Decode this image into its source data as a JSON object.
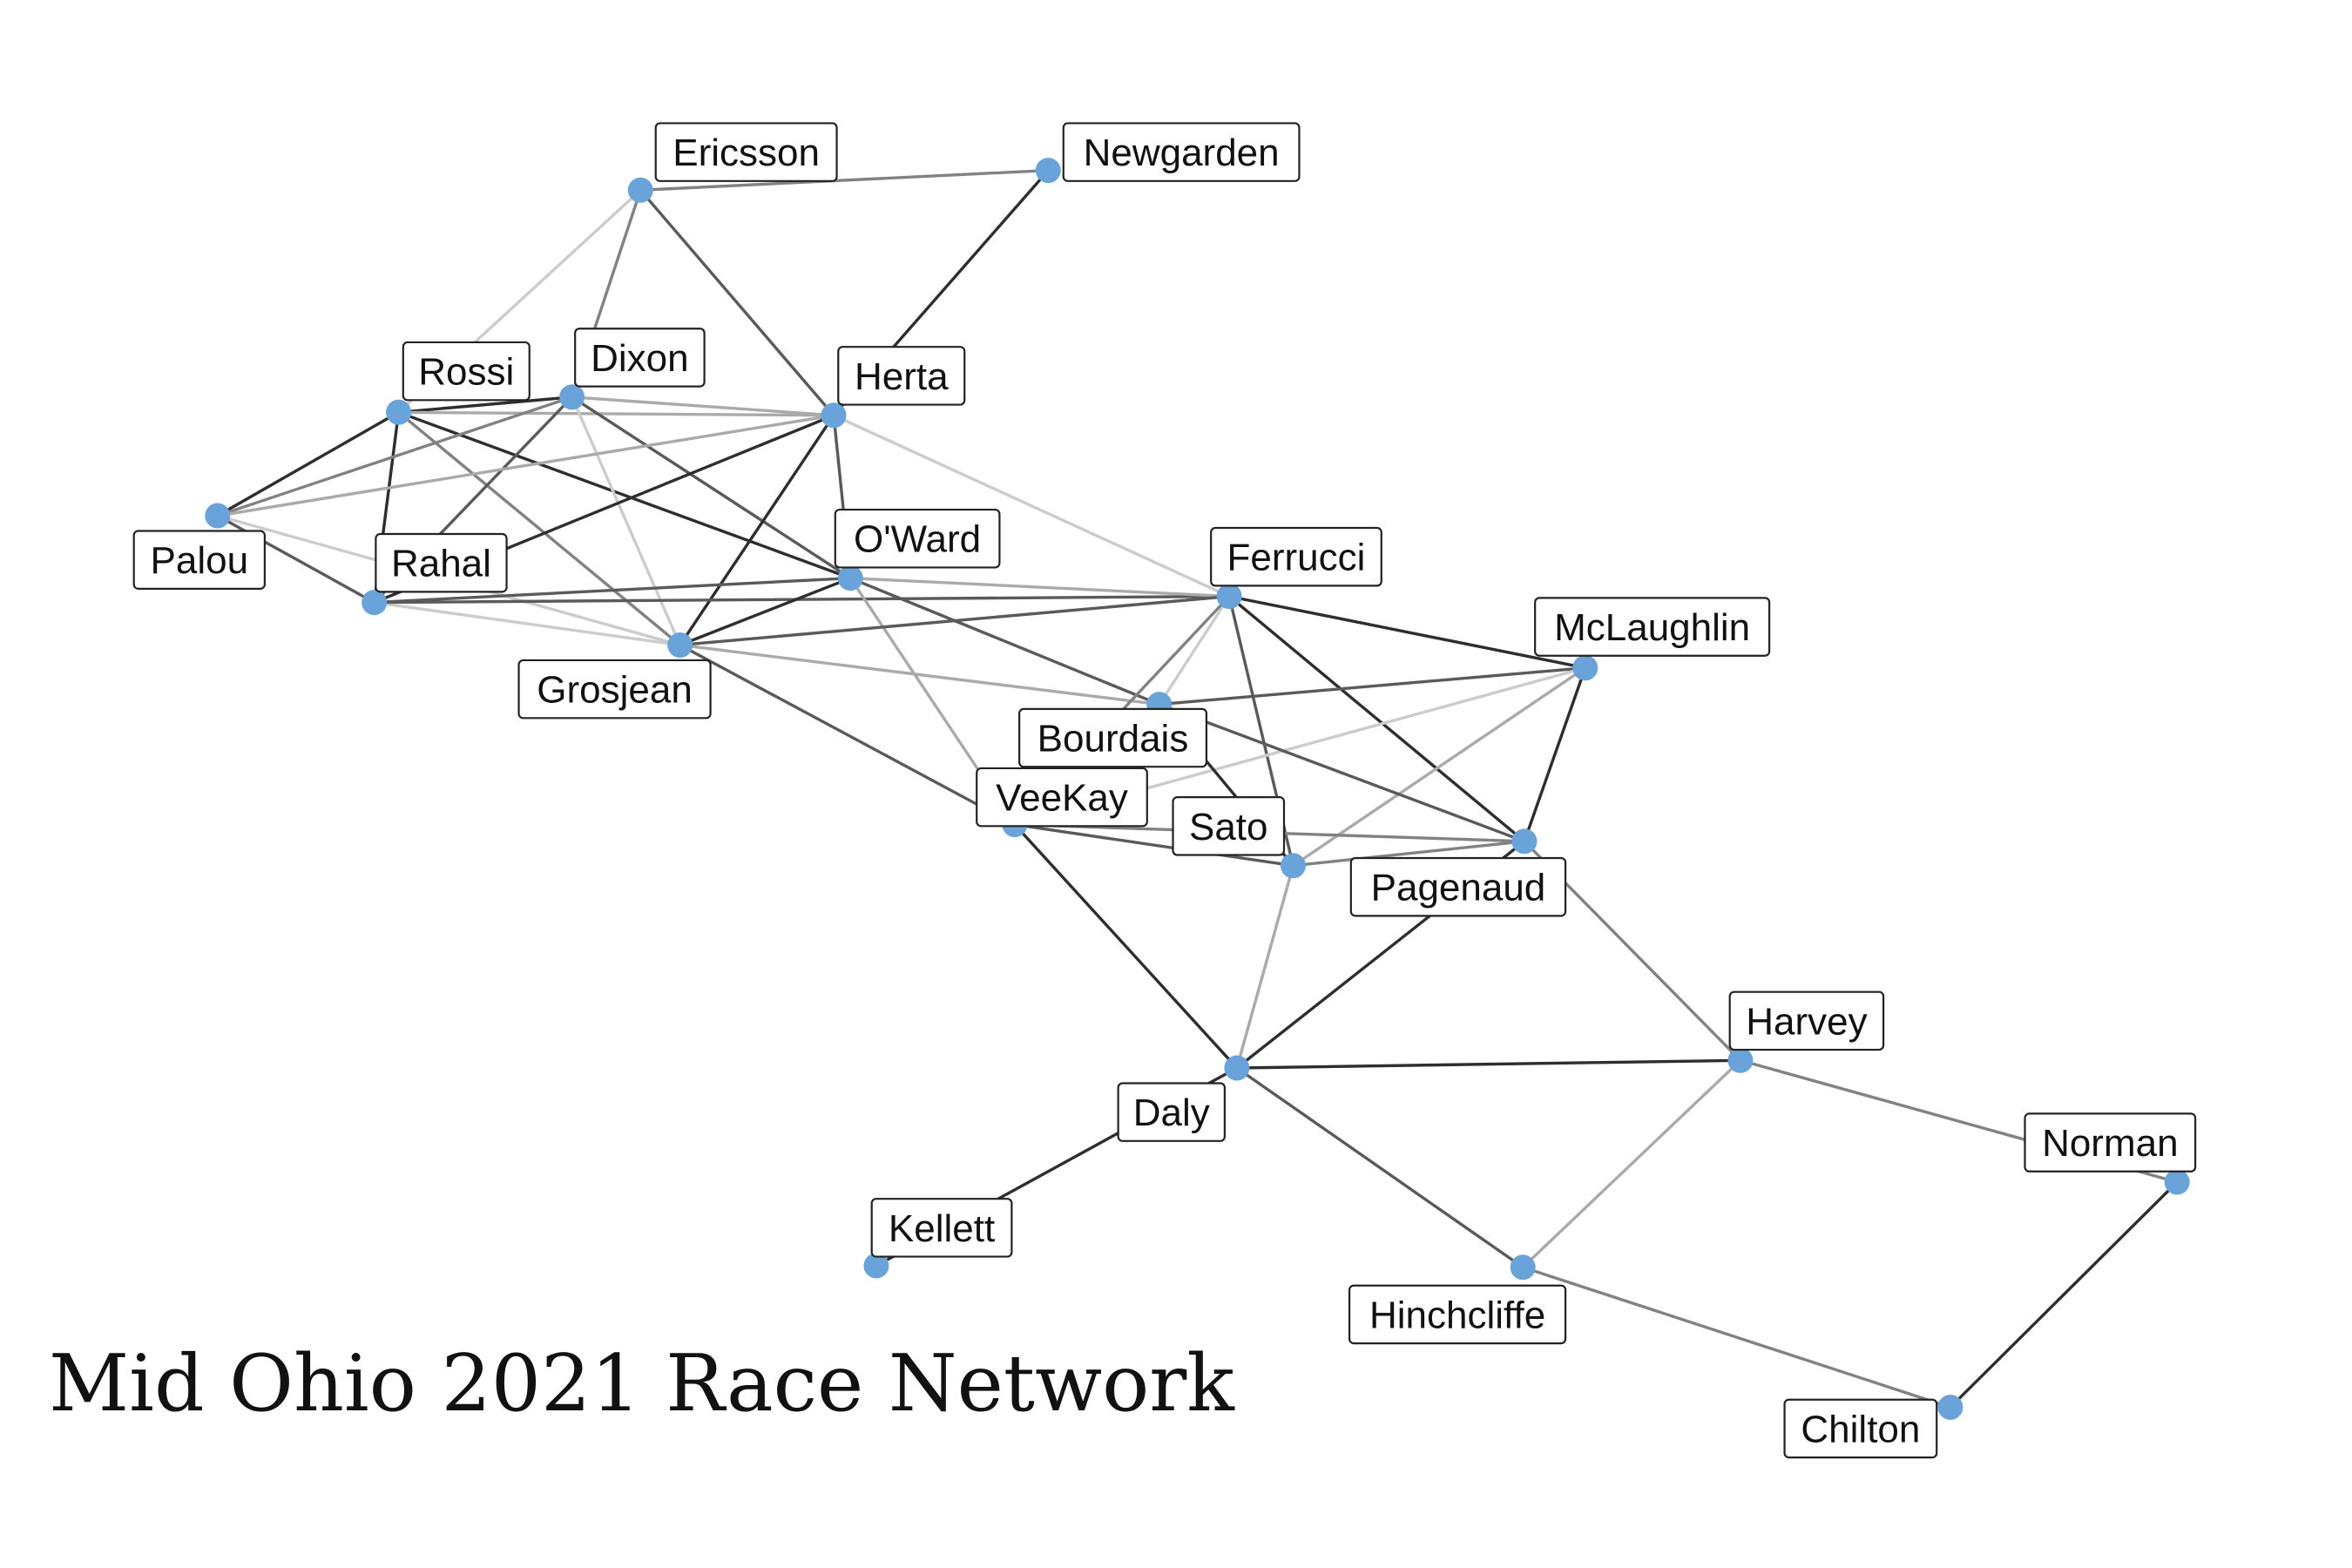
{
  "title": "Mid Ohio 2021 Race Network",
  "node_color": "#6aa3d9",
  "edge_shades": {
    "dark": "#2e2e2e",
    "medium_dark": "#5a5a5a",
    "medium": "#828282",
    "light": "#aaaaaa",
    "very_light": "#cccccc"
  },
  "nodes": [
    {
      "id": "ericsson",
      "name": "Ericsson"
    },
    {
      "id": "newgarden",
      "name": "Newgarden"
    },
    {
      "id": "rossi",
      "name": "Rossi"
    },
    {
      "id": "dixon",
      "name": "Dixon"
    },
    {
      "id": "herta",
      "name": "Herta"
    },
    {
      "id": "palou",
      "name": "Palou"
    },
    {
      "id": "rahal",
      "name": "Rahal"
    },
    {
      "id": "oward",
      "name": "O'Ward"
    },
    {
      "id": "ferrucci",
      "name": "Ferrucci"
    },
    {
      "id": "grosjean",
      "name": "Grosjean"
    },
    {
      "id": "mclaughlin",
      "name": "McLaughlin"
    },
    {
      "id": "bourdais",
      "name": "Bourdais"
    },
    {
      "id": "veekay",
      "name": "VeeKay"
    },
    {
      "id": "sato",
      "name": "Sato"
    },
    {
      "id": "pagenaud",
      "name": "Pagenaud"
    },
    {
      "id": "harvey",
      "name": "Harvey"
    },
    {
      "id": "daly",
      "name": "Daly"
    },
    {
      "id": "norman",
      "name": "Norman"
    },
    {
      "id": "kellett",
      "name": "Kellett"
    },
    {
      "id": "hinchcliffe",
      "name": "Hinchcliffe"
    },
    {
      "id": "chilton",
      "name": "Chilton"
    }
  ],
  "edges": [
    {
      "source": "ericsson",
      "target": "newgarden",
      "shade": "medium"
    },
    {
      "source": "ericsson",
      "target": "rossi",
      "shade": "very_light"
    },
    {
      "source": "ericsson",
      "target": "dixon",
      "shade": "medium"
    },
    {
      "source": "ericsson",
      "target": "herta",
      "shade": "medium_dark"
    },
    {
      "source": "newgarden",
      "target": "herta",
      "shade": "dark"
    },
    {
      "source": "rossi",
      "target": "dixon",
      "shade": "dark"
    },
    {
      "source": "rossi",
      "target": "herta",
      "shade": "light"
    },
    {
      "source": "rossi",
      "target": "palou",
      "shade": "dark"
    },
    {
      "source": "rossi",
      "target": "rahal",
      "shade": "dark"
    },
    {
      "source": "rossi",
      "target": "oward",
      "shade": "dark"
    },
    {
      "source": "rossi",
      "target": "grosjean",
      "shade": "medium"
    },
    {
      "source": "dixon",
      "target": "herta",
      "shade": "light"
    },
    {
      "source": "dixon",
      "target": "palou",
      "shade": "medium"
    },
    {
      "source": "dixon",
      "target": "rahal",
      "shade": "medium_dark"
    },
    {
      "source": "dixon",
      "target": "oward",
      "shade": "medium_dark"
    },
    {
      "source": "dixon",
      "target": "grosjean",
      "shade": "very_light"
    },
    {
      "source": "herta",
      "target": "palou",
      "shade": "light"
    },
    {
      "source": "herta",
      "target": "rahal",
      "shade": "dark"
    },
    {
      "source": "herta",
      "target": "oward",
      "shade": "medium_dark"
    },
    {
      "source": "herta",
      "target": "grosjean",
      "shade": "dark"
    },
    {
      "source": "herta",
      "target": "ferrucci",
      "shade": "very_light"
    },
    {
      "source": "palou",
      "target": "rahal",
      "shade": "medium_dark"
    },
    {
      "source": "palou",
      "target": "grosjean",
      "shade": "very_light"
    },
    {
      "source": "rahal",
      "target": "oward",
      "shade": "medium_dark"
    },
    {
      "source": "rahal",
      "target": "grosjean",
      "shade": "very_light"
    },
    {
      "source": "rahal",
      "target": "ferrucci",
      "shade": "medium_dark"
    },
    {
      "source": "oward",
      "target": "grosjean",
      "shade": "dark"
    },
    {
      "source": "oward",
      "target": "ferrucci",
      "shade": "light"
    },
    {
      "source": "oward",
      "target": "bourdais",
      "shade": "medium_dark"
    },
    {
      "source": "oward",
      "target": "veekay",
      "shade": "light"
    },
    {
      "source": "grosjean",
      "target": "ferrucci",
      "shade": "medium_dark"
    },
    {
      "source": "grosjean",
      "target": "bourdais",
      "shade": "light"
    },
    {
      "source": "grosjean",
      "target": "veekay",
      "shade": "medium_dark"
    },
    {
      "source": "ferrucci",
      "target": "mclaughlin",
      "shade": "dark"
    },
    {
      "source": "ferrucci",
      "target": "bourdais",
      "shade": "very_light"
    },
    {
      "source": "ferrucci",
      "target": "veekay",
      "shade": "medium"
    },
    {
      "source": "ferrucci",
      "target": "sato",
      "shade": "medium_dark"
    },
    {
      "source": "ferrucci",
      "target": "pagenaud",
      "shade": "dark"
    },
    {
      "source": "mclaughlin",
      "target": "bourdais",
      "shade": "medium_dark"
    },
    {
      "source": "mclaughlin",
      "target": "veekay",
      "shade": "very_light"
    },
    {
      "source": "mclaughlin",
      "target": "sato",
      "shade": "light"
    },
    {
      "source": "mclaughlin",
      "target": "pagenaud",
      "shade": "dark"
    },
    {
      "source": "bourdais",
      "target": "sato",
      "shade": "dark"
    },
    {
      "source": "bourdais",
      "target": "pagenaud",
      "shade": "medium_dark"
    },
    {
      "source": "veekay",
      "target": "sato",
      "shade": "medium_dark"
    },
    {
      "source": "veekay",
      "target": "pagenaud",
      "shade": "medium"
    },
    {
      "source": "veekay",
      "target": "daly",
      "shade": "dark"
    },
    {
      "source": "sato",
      "target": "pagenaud",
      "shade": "medium"
    },
    {
      "source": "sato",
      "target": "daly",
      "shade": "light"
    },
    {
      "source": "pagenaud",
      "target": "daly",
      "shade": "dark"
    },
    {
      "source": "pagenaud",
      "target": "harvey",
      "shade": "medium"
    },
    {
      "source": "daly",
      "target": "harvey",
      "shade": "dark"
    },
    {
      "source": "daly",
      "target": "hinchcliffe",
      "shade": "medium_dark"
    },
    {
      "source": "daly",
      "target": "kellett",
      "shade": "dark"
    },
    {
      "source": "harvey",
      "target": "hinchcliffe",
      "shade": "light"
    },
    {
      "source": "harvey",
      "target": "norman",
      "shade": "medium"
    },
    {
      "source": "hinchcliffe",
      "target": "chilton",
      "shade": "medium"
    },
    {
      "source": "norman",
      "target": "chilton",
      "shade": "dark"
    }
  ]
}
